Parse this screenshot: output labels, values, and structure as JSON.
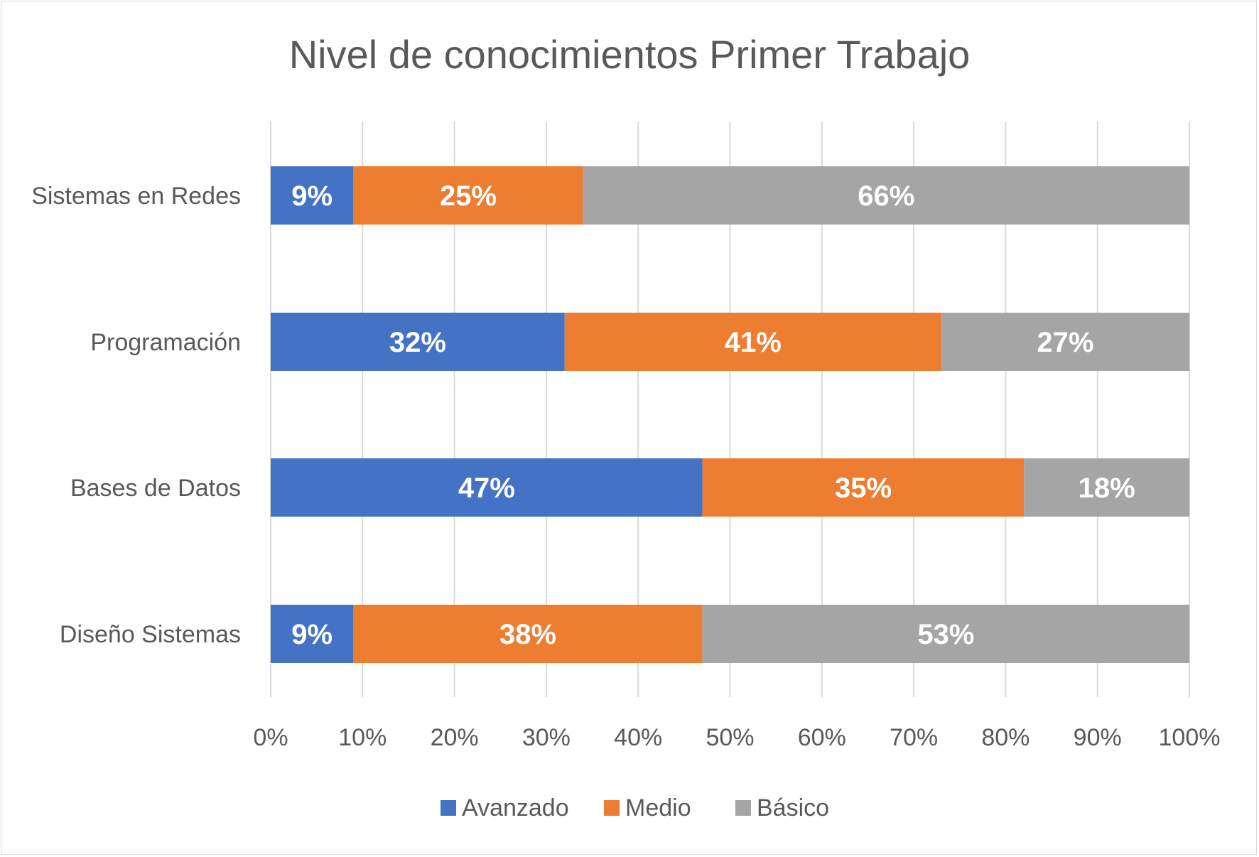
{
  "chart_data": {
    "type": "bar",
    "orientation": "horizontal",
    "stacked": "percent",
    "title": "Nivel de conocimientos Primer Trabajo",
    "categories": [
      "Sistemas en Redes",
      "Programación",
      "Bases de Datos",
      "Diseño Sistemas"
    ],
    "series": [
      {
        "name": "Avanzado",
        "color": "#4472c4",
        "values": [
          9,
          32,
          47,
          9
        ],
        "labels": [
          "9%",
          "32%",
          "47%",
          "9%"
        ]
      },
      {
        "name": "Medio",
        "color": "#ed7d31",
        "values": [
          25,
          41,
          35,
          38
        ],
        "labels": [
          "25%",
          "41%",
          "35%",
          "38%"
        ]
      },
      {
        "name": "Básico",
        "color": "#a5a5a5",
        "values": [
          66,
          27,
          18,
          53
        ],
        "labels": [
          "66%",
          "27%",
          "18%",
          "53%"
        ]
      }
    ],
    "xlim": [
      0,
      100
    ],
    "x_ticks": [
      "0%",
      "10%",
      "20%",
      "30%",
      "40%",
      "50%",
      "60%",
      "70%",
      "80%",
      "90%",
      "100%"
    ],
    "grid": true,
    "legend_position": "bottom"
  }
}
